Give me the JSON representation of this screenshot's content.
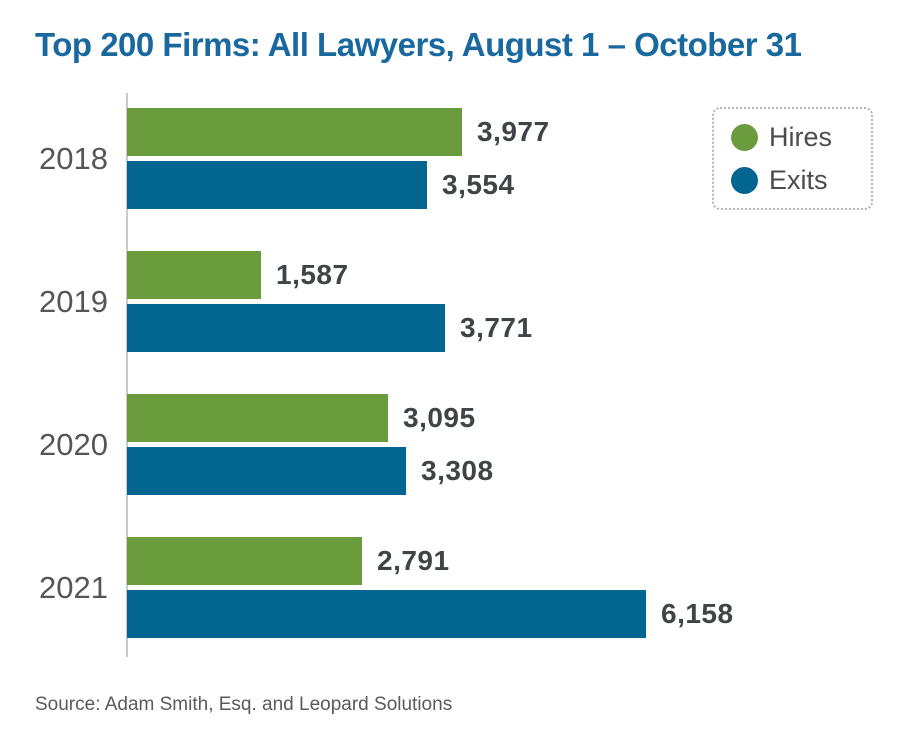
{
  "page": {
    "title": "Top 200 Firms: All Lawyers, August 1 – October 31",
    "source": "Source: Adam Smith, Esq. and Leopard Solutions"
  },
  "legend": {
    "items": [
      {
        "label": "Hires"
      },
      {
        "label": "Exits"
      }
    ]
  },
  "colors": {
    "hires_green": "#6A9B3D",
    "exits_blue": "#036690",
    "title_blue": "#19699F",
    "axis_line": "#C9CACB",
    "year_label": "#55565A",
    "value_label": "#3F4447",
    "legend_text": "#4B4C4E",
    "legend_border": "#B3B3B3",
    "source_text": "#595A5C"
  },
  "chart_data": {
    "type": "bar",
    "orientation": "horizontal",
    "title": "Top 200 Firms: All Lawyers, August 1 – October 31",
    "categories": [
      "2018",
      "2019",
      "2020",
      "2021"
    ],
    "series": [
      {
        "name": "Hires",
        "color": "#6A9B3D",
        "values": [
          3977,
          1587,
          3095,
          2791
        ]
      },
      {
        "name": "Exits",
        "color": "#036690",
        "values": [
          3554,
          3771,
          3308,
          6158
        ]
      }
    ],
    "value_labels": [
      [
        "3,977",
        "3,554"
      ],
      [
        "1,587",
        "3,771"
      ],
      [
        "3,095",
        "3,308"
      ],
      [
        "2,791",
        "6,158"
      ]
    ],
    "xlim": [
      0,
      6600
    ],
    "grid": false,
    "legend_position": "top-right",
    "source": "Source: Adam Smith, Esq. and Leopard Solutions"
  }
}
